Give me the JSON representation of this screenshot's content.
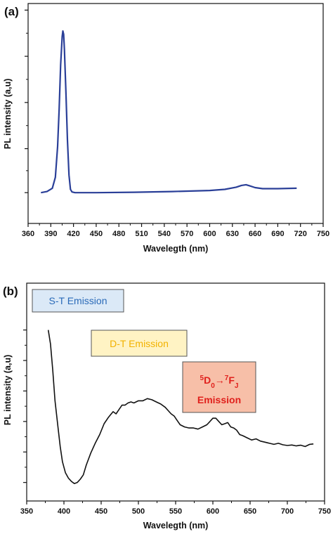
{
  "colors": {
    "curve_a": "#2a3f98",
    "curve_b": "#111111",
    "st_box_fill": "#dbe9f7",
    "st_box_text": "#2a6ab8",
    "dt_box_fill": "#fff3c4",
    "dt_box_text": "#f2b200",
    "ln_box_fill": "#f7bfa8",
    "ln_box_text": "#e0201c"
  },
  "chart_data": [
    {
      "type": "line",
      "panel_label": "(a)",
      "xlabel": "Wavelegth (nm)",
      "ylabel": "PL intensity (a,u)",
      "xlim": [
        360,
        750
      ],
      "ylim": [
        0,
        1
      ],
      "x_ticks": [
        "360",
        "390",
        "420",
        "450",
        "480",
        "510",
        "540",
        "570",
        "600",
        "630",
        "660",
        "690",
        "720",
        "750"
      ],
      "y_tick_values": [
        0.14,
        0.34,
        0.55,
        0.76,
        0.97
      ],
      "show_y_tick_labels": false,
      "grid": false,
      "series": [
        {
          "x": [
            377,
            385,
            392,
            396,
            399,
            401,
            403,
            405,
            406,
            407,
            408,
            410,
            412,
            414,
            416,
            418,
            422,
            450,
            500,
            550,
            600,
            620,
            635,
            642,
            648,
            652,
            660,
            670,
            690,
            715
          ],
          "y": [
            0.14,
            0.145,
            0.16,
            0.21,
            0.35,
            0.52,
            0.72,
            0.85,
            0.875,
            0.86,
            0.79,
            0.6,
            0.38,
            0.22,
            0.155,
            0.143,
            0.14,
            0.14,
            0.142,
            0.145,
            0.15,
            0.155,
            0.165,
            0.173,
            0.176,
            0.172,
            0.163,
            0.158,
            0.158,
            0.16
          ]
        }
      ]
    },
    {
      "type": "line",
      "panel_label": "(b)",
      "xlabel": "Wavelegth (nm)",
      "ylabel": "PL intensity (a,u)",
      "xlim": [
        350,
        750
      ],
      "ylim": [
        0,
        1
      ],
      "x_ticks": [
        "350",
        "400",
        "450",
        "500",
        "550",
        "600",
        "650",
        "700",
        "750"
      ],
      "y_tick_values": [
        0.085,
        0.225,
        0.365,
        0.505,
        0.645,
        0.785
      ],
      "show_y_tick_labels": false,
      "grid": false,
      "annotations": [
        {
          "text": "S-T Emission",
          "style": "st"
        },
        {
          "text": "D-T Emission",
          "style": "dt"
        },
        {
          "lines": [
            [
              "5",
              "D",
              "0",
              "→",
              "7",
              "F",
              "J"
            ],
            [
              "Emission"
            ]
          ],
          "style": "ln"
        }
      ],
      "series": [
        {
          "x": [
            379,
            382,
            385,
            388,
            392,
            395,
            398,
            402,
            406,
            410,
            414,
            418,
            422,
            426,
            430,
            436,
            442,
            448,
            454,
            460,
            466,
            470,
            474,
            478,
            482,
            486,
            490,
            494,
            500,
            506,
            512,
            518,
            524,
            530,
            536,
            540,
            544,
            548,
            552,
            556,
            562,
            568,
            574,
            580,
            586,
            592,
            596,
            600,
            604,
            608,
            612,
            616,
            620,
            624,
            628,
            632,
            636,
            640,
            646,
            652,
            658,
            664,
            670,
            676,
            682,
            688,
            694,
            700,
            706,
            712,
            718,
            724,
            730,
            735
          ],
          "y": [
            0.785,
            0.72,
            0.6,
            0.46,
            0.34,
            0.25,
            0.18,
            0.13,
            0.105,
            0.09,
            0.08,
            0.085,
            0.1,
            0.12,
            0.165,
            0.22,
            0.265,
            0.305,
            0.355,
            0.385,
            0.41,
            0.4,
            0.42,
            0.44,
            0.44,
            0.45,
            0.455,
            0.45,
            0.46,
            0.46,
            0.47,
            0.465,
            0.455,
            0.445,
            0.43,
            0.415,
            0.4,
            0.39,
            0.37,
            0.35,
            0.34,
            0.335,
            0.335,
            0.33,
            0.34,
            0.35,
            0.365,
            0.38,
            0.38,
            0.365,
            0.35,
            0.355,
            0.36,
            0.34,
            0.335,
            0.325,
            0.305,
            0.3,
            0.29,
            0.28,
            0.285,
            0.275,
            0.27,
            0.265,
            0.26,
            0.265,
            0.258,
            0.255,
            0.257,
            0.253,
            0.256,
            0.25,
            0.26,
            0.262
          ]
        }
      ]
    }
  ]
}
